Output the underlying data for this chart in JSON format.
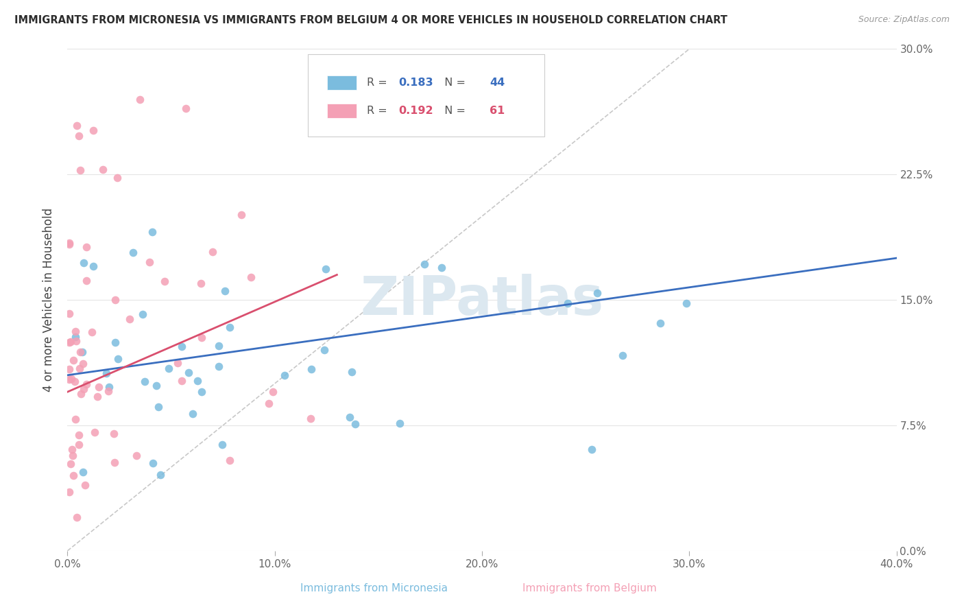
{
  "title": "IMMIGRANTS FROM MICRONESIA VS IMMIGRANTS FROM BELGIUM 4 OR MORE VEHICLES IN HOUSEHOLD CORRELATION CHART",
  "source": "Source: ZipAtlas.com",
  "ylabel": "4 or more Vehicles in Household",
  "xlim": [
    0.0,
    40.0
  ],
  "ylim": [
    0.0,
    30.0
  ],
  "yticks": [
    0.0,
    7.5,
    15.0,
    22.5,
    30.0
  ],
  "xticks": [
    0.0,
    10.0,
    20.0,
    30.0,
    40.0
  ],
  "color_micronesia": "#7bbcde",
  "color_belgium": "#f4a0b5",
  "trendline_micronesia": "#3a6ebf",
  "trendline_belgium": "#d94f6e",
  "diagonal_color": "#c8c8c8",
  "watermark": "ZIPatlas",
  "legend_r_micronesia": "0.183",
  "legend_n_micronesia": "44",
  "legend_r_belgium": "0.192",
  "legend_n_belgium": "61",
  "mic_trend_x0": 0.0,
  "mic_trend_y0": 10.5,
  "mic_trend_x1": 40.0,
  "mic_trend_y1": 17.5,
  "bel_trend_x0": 0.0,
  "bel_trend_y0": 9.5,
  "bel_trend_x1": 13.0,
  "bel_trend_y1": 16.5,
  "diag_x0": 0.0,
  "diag_y0": 0.0,
  "diag_x1": 30.0,
  "diag_y1": 30.0
}
